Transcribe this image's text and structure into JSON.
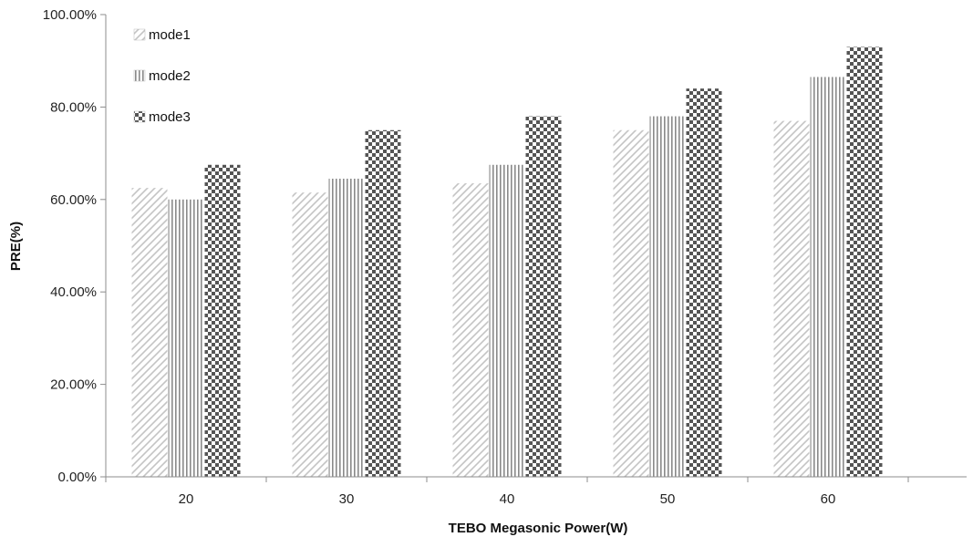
{
  "chart_data": {
    "type": "bar",
    "title": "",
    "xlabel": "TEBO Megasonic Power(W)",
    "ylabel": "PRE(%)",
    "categories": [
      "20",
      "30",
      "40",
      "50",
      "60"
    ],
    "ylim": [
      0,
      100
    ],
    "yticks": [
      "0.00%",
      "20.00%",
      "40.00%",
      "60.00%",
      "80.00%",
      "100.00%"
    ],
    "grid": false,
    "legend_position": "top-left",
    "series": [
      {
        "name": "mode1",
        "values": [
          62.5,
          61.5,
          63.5,
          75.0,
          77.0
        ],
        "pattern": "diagonal-hatch",
        "color": "#c8c8c8"
      },
      {
        "name": "mode2",
        "values": [
          60.0,
          64.5,
          67.5,
          78.0,
          86.5
        ],
        "pattern": "vertical-lines",
        "color": "#8c8c8c"
      },
      {
        "name": "mode3",
        "values": [
          67.5,
          75.0,
          78.0,
          84.0,
          93.0
        ],
        "pattern": "checkerboard",
        "color": "#5a5a5a"
      }
    ]
  }
}
